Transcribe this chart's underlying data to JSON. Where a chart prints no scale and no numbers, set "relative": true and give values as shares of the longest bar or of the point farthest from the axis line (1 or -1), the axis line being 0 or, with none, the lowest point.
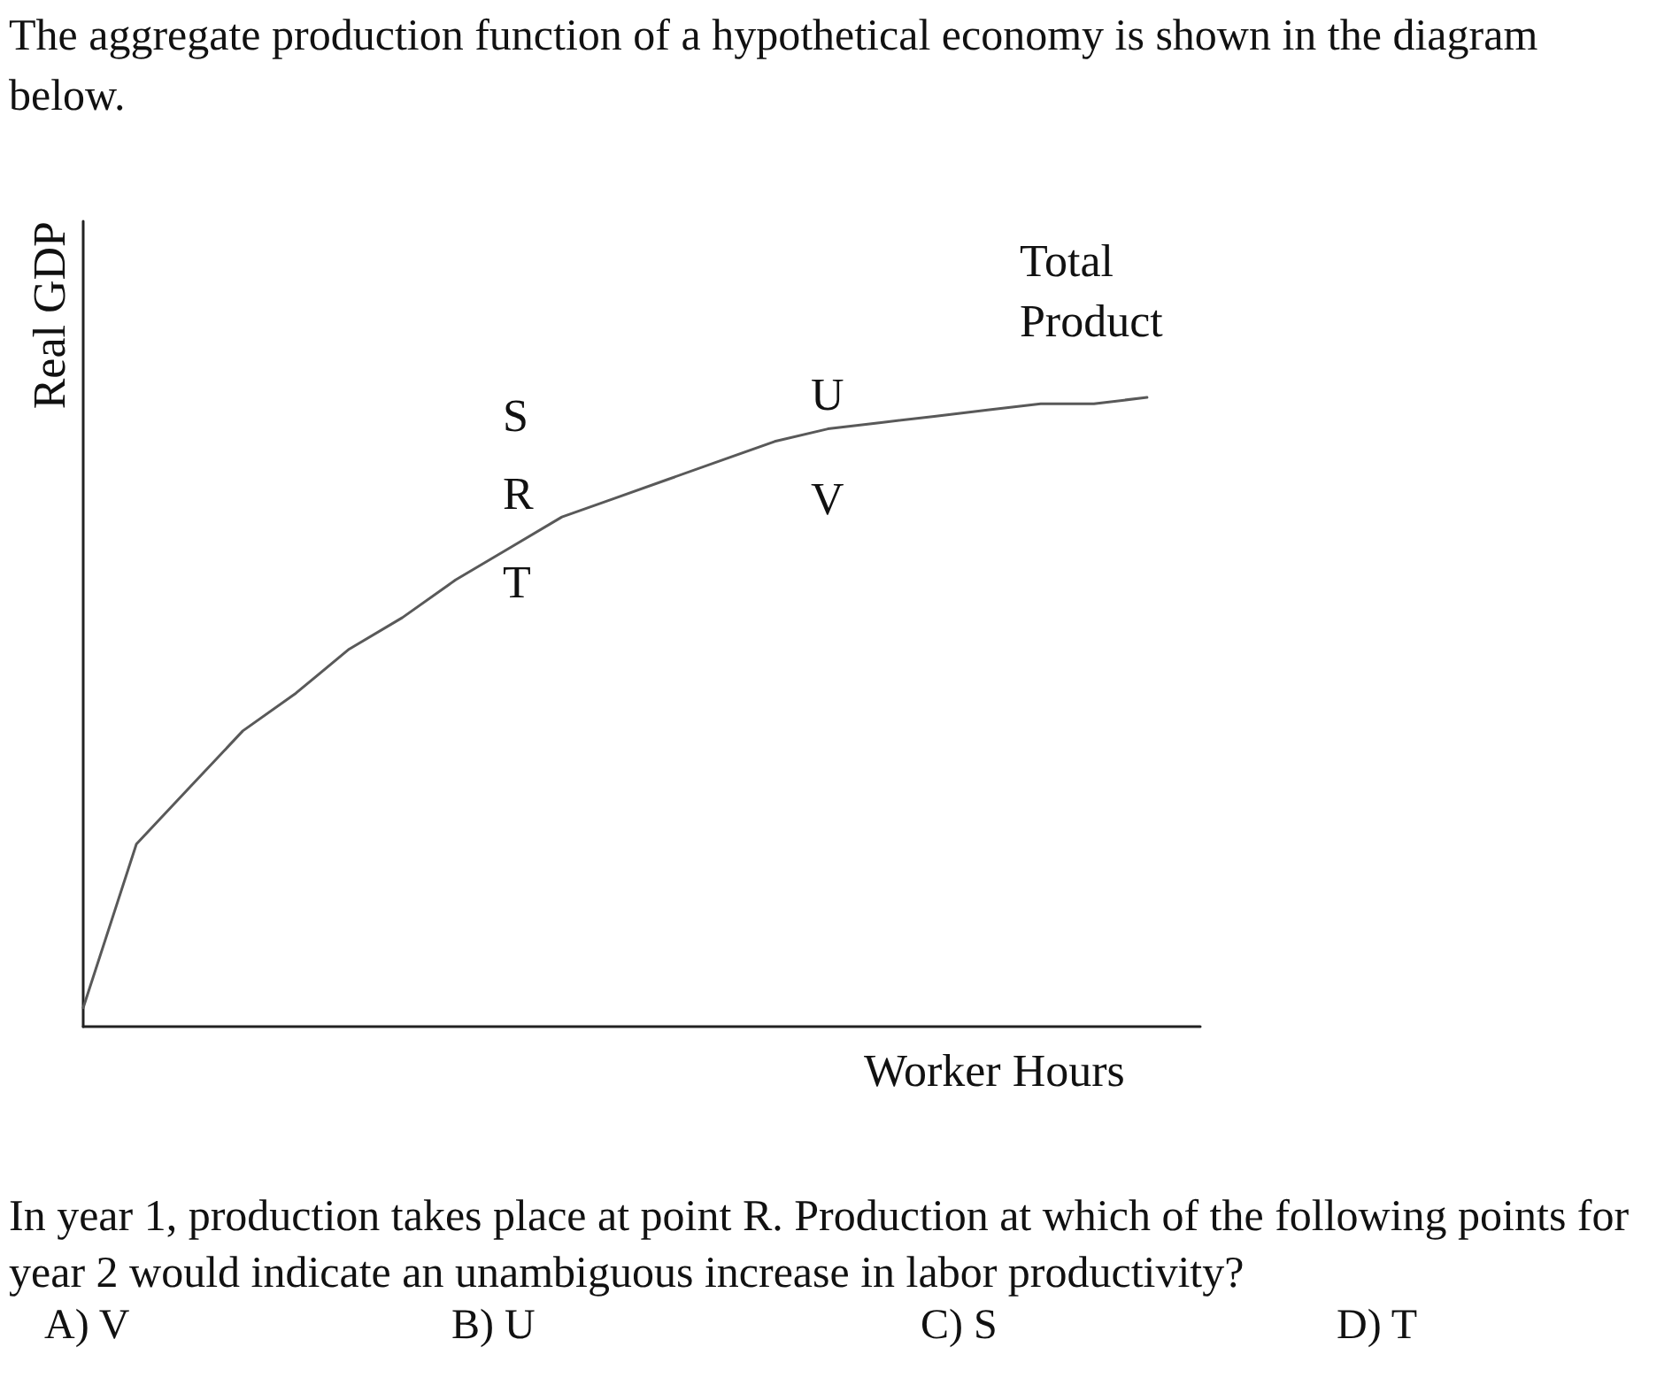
{
  "chart_data": {
    "type": "line",
    "relative": true,
    "title": "The aggregate production function of a hypothetical economy is shown in the diagram below.",
    "xlabel": "Worker Hours",
    "ylabel": "Real GDP",
    "categories": [
      null,
      null,
      null,
      null,
      null,
      null,
      null,
      null,
      null,
      null,
      null,
      null,
      null,
      null,
      null,
      null,
      null,
      null,
      null,
      null,
      null,
      null
    ],
    "series": [
      {
        "name": "Total Product",
        "color": "#595959",
        "values": [
          0.03,
          0.29,
          0.38,
          0.47,
          0.53,
          0.6,
          0.65,
          0.71,
          0.76,
          0.81,
          0.84,
          0.87,
          0.9,
          0.93,
          0.95,
          0.96,
          0.97,
          0.98,
          0.99,
          0.99,
          1,
          null
        ]
      }
    ],
    "annotations": [
      "S",
      "R",
      "T",
      "U",
      "V",
      "In year 1, production takes place at point R. Production at which of the following points for year 2 would indicate an unambiguous increase in labor productivity?",
      "A) V",
      "B) U",
      "C) S",
      "D) T"
    ],
    "marker": "none",
    "line_style": "solid",
    "grid": false,
    "legend": false
  }
}
